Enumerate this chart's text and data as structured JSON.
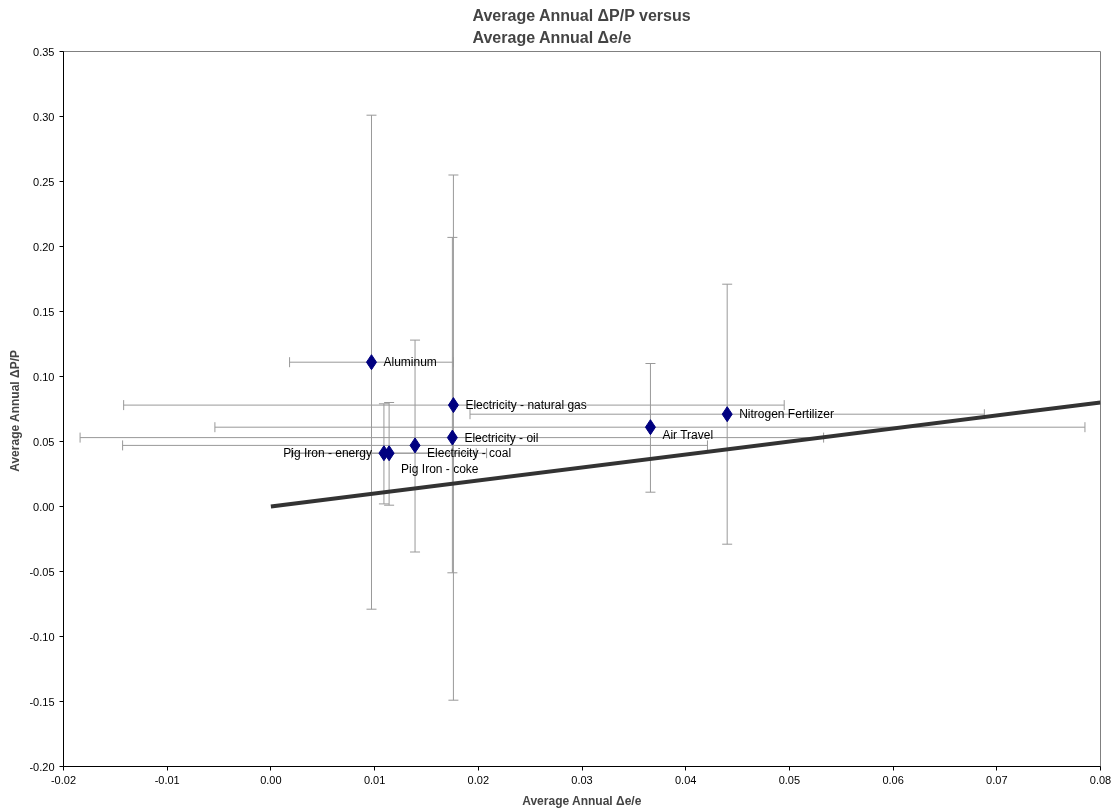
{
  "chart_data": {
    "type": "scatter",
    "title": "Average Annual ΔP/P versus\nAverage Annual Δe/e",
    "xlabel": "Average Annual Δe/e",
    "ylabel": "Average Annual  ΔP/P",
    "xlim": [
      -0.02,
      0.08
    ],
    "ylim": [
      -0.2,
      0.35
    ],
    "xticks": [
      {
        "value": -0.02,
        "label": "-0.02"
      },
      {
        "value": -0.01,
        "label": "-0.01"
      },
      {
        "value": 0,
        "label": "0.00"
      },
      {
        "value": 0.01,
        "label": "0.01"
      },
      {
        "value": 0.02,
        "label": "0.02"
      },
      {
        "value": 0.03,
        "label": "0.03"
      },
      {
        "value": 0.04,
        "label": "0.04"
      },
      {
        "value": 0.05,
        "label": "0.05"
      },
      {
        "value": 0.06,
        "label": "0.06"
      },
      {
        "value": 0.07,
        "label": "0.07"
      },
      {
        "value": 0.08,
        "label": "0.08"
      }
    ],
    "yticks": [
      {
        "value": -0.2,
        "label": "-0.20"
      },
      {
        "value": -0.15,
        "label": "-0.15"
      },
      {
        "value": -0.1,
        "label": "-0.10"
      },
      {
        "value": -0.05,
        "label": "-0.05"
      },
      {
        "value": 0,
        "label": "0.00"
      },
      {
        "value": 0.05,
        "label": "0.05"
      },
      {
        "value": 0.1,
        "label": "0.10"
      },
      {
        "value": 0.15,
        "label": "0.15"
      },
      {
        "value": 0.2,
        "label": "0.20"
      },
      {
        "value": 0.25,
        "label": "0.25"
      },
      {
        "value": 0.3,
        "label": "0.30"
      },
      {
        "value": 0.35,
        "label": "0.35"
      }
    ],
    "grid": false,
    "marker": "diamond",
    "series": [
      {
        "color": "#000080",
        "x": [
          0.0097,
          0.0176,
          0.0175,
          0.0139,
          0.0114,
          0.0109,
          0.0366,
          0.044
        ],
        "values": [
          0.111,
          0.078,
          0.053,
          0.047,
          0.041,
          0.041,
          0.061,
          0.071
        ],
        "errors": [
          [
            -0.079,
            0.301
          ],
          [
            -0.149,
            0.255
          ],
          [
            -0.051,
            0.207
          ],
          [
            -0.035,
            0.128
          ],
          [
            0.001,
            0.08
          ],
          [
            0.002,
            0.079
          ],
          [
            0.011,
            0.11
          ],
          [
            -0.029,
            0.171
          ]
        ],
        "xerrors": [
          [
            0.0018,
            0.0176
          ],
          [
            -0.0142,
            0.0495
          ],
          [
            -0.0184,
            0.0533
          ],
          [
            -0.0143,
            0.0421
          ],
          [
            0.002,
            0.0208
          ],
          [
            0.002,
            0.0198
          ],
          [
            -0.0054,
            0.0785
          ],
          [
            0.0192,
            0.0688
          ]
        ]
      },
      {
        "type": "line",
        "marker": "none",
        "color": "#333333",
        "x": [
          0,
          0.08
        ],
        "values": [
          0,
          0.08
        ]
      }
    ],
    "annotations": [
      {
        "text": "Aluminum",
        "x": 0.0097,
        "y": 0.111
      },
      {
        "text": "Electricity - natural gas",
        "x": 0.0176,
        "y": 0.078
      },
      {
        "text": "Electricity - oil",
        "x": 0.0175,
        "y": 0.053
      },
      {
        "text": "Electricity - coal",
        "x": 0.0139,
        "y": 0.047
      },
      {
        "text": "Pig Iron - coke",
        "x": 0.0114,
        "y": 0.041
      },
      {
        "text": "Pig Iron - energy",
        "x": 0.0109,
        "y": 0.041
      },
      {
        "text": "Air Travel",
        "x": 0.0366,
        "y": 0.061
      },
      {
        "text": "Nitrogen Fertilizer",
        "x": 0.044,
        "y": 0.071
      }
    ]
  }
}
